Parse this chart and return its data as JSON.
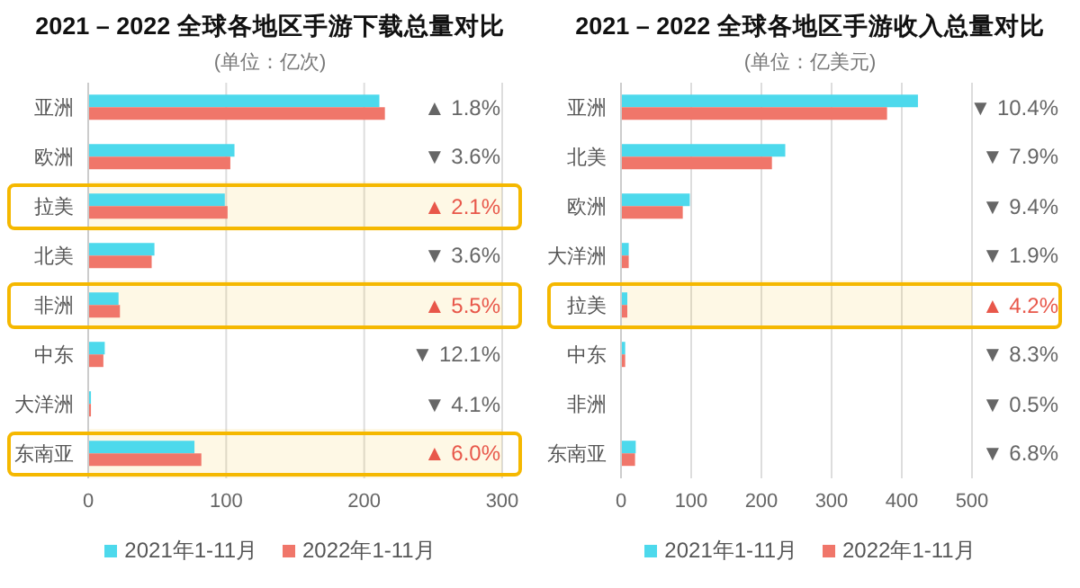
{
  "chart_data": [
    {
      "type": "bar",
      "orientation": "horizontal",
      "title": "2021 – 2022 全球各地区手游下载总量对比",
      "subtitle": "(单位：亿次)",
      "categories": [
        "亚洲",
        "欧洲",
        "拉美",
        "北美",
        "非洲",
        "中东",
        "大洋洲",
        "东南亚"
      ],
      "series": [
        {
          "name": "2021年1-11月",
          "color": "#4dd9ec",
          "values": [
            211,
            106,
            99,
            48,
            22,
            12,
            2,
            77
          ]
        },
        {
          "name": "2022年1-11月",
          "color": "#f0766a",
          "values": [
            215,
            103,
            101,
            46,
            23,
            11,
            2,
            82
          ]
        }
      ],
      "xlim": [
        0,
        300
      ],
      "xticks": [
        0,
        100,
        200,
        300
      ],
      "grid": "x",
      "legend": "bottom",
      "bands": [
        {
          "axis": "y",
          "from": "拉美",
          "to": "拉美",
          "color": "#f5b800"
        },
        {
          "axis": "y",
          "from": "非洲",
          "to": "非洲",
          "color": "#f5b800"
        },
        {
          "axis": "y",
          "from": "东南亚",
          "to": "东南亚",
          "color": "#f5b800"
        }
      ],
      "annotations": [
        "▲ 1.8%",
        "▼ 3.6%",
        "▲ 2.1%",
        "▼ 3.6%",
        "▲ 5.5%",
        "▼ 12.1%",
        "▼ 4.1%",
        "▲ 6.0%"
      ]
    },
    {
      "type": "bar",
      "orientation": "horizontal",
      "title": "2021 – 2022 全球各地区手游收入总量对比",
      "subtitle": "(单位：亿美元)",
      "categories": [
        "亚洲",
        "北美",
        "欧洲",
        "大洋洲",
        "拉美",
        "中东",
        "非洲",
        "东南亚"
      ],
      "series": [
        {
          "name": "2021年1-11月",
          "color": "#4dd9ec",
          "values": [
            423,
            234,
            98,
            11,
            9,
            6,
            null,
            21
          ]
        },
        {
          "name": "2022年1-11月",
          "color": "#f0766a",
          "values": [
            379,
            215,
            88,
            11,
            9,
            6,
            null,
            20
          ]
        }
      ],
      "xlim": [
        0,
        500
      ],
      "xticks": [
        0,
        100,
        200,
        300,
        400,
        500
      ],
      "grid": "x",
      "legend": "bottom",
      "bands": [
        {
          "axis": "y",
          "from": "拉美",
          "to": "拉美",
          "color": "#f5b800"
        }
      ],
      "annotations": [
        "▼ 10.4%",
        "▼ 7.9%",
        "▼ 9.4%",
        "▼ 1.9%",
        "▲ 4.2%",
        "▼ 8.3%",
        "▼ 0.5%",
        "▼ 6.8%"
      ]
    }
  ]
}
